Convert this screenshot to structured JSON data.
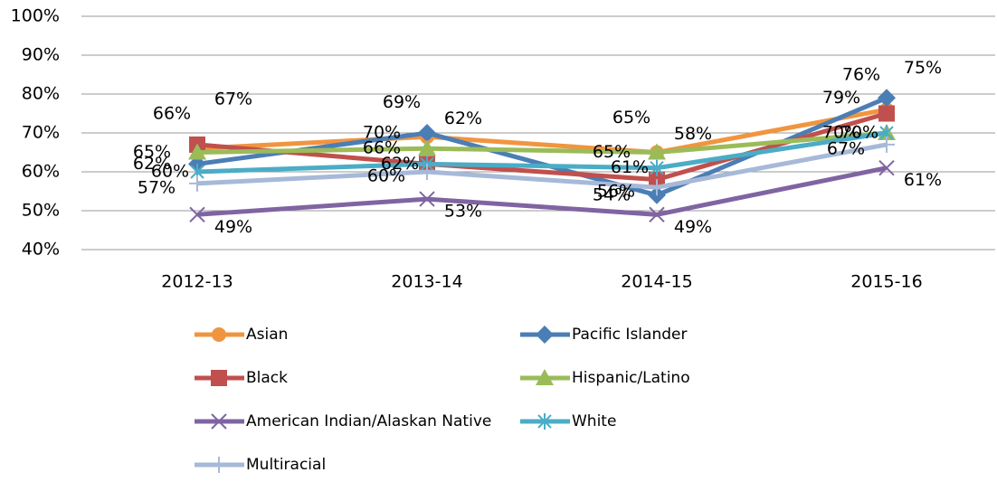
{
  "chart_data": {
    "type": "line",
    "categories": [
      "2012-13",
      "2013-14",
      "2014-15",
      "2015-16"
    ],
    "ylim": [
      40,
      100
    ],
    "yticks": [
      {
        "value": 40,
        "label": "40%"
      },
      {
        "value": 50,
        "label": "50%"
      },
      {
        "value": 60,
        "label": "60%"
      },
      {
        "value": 70,
        "label": "70%"
      },
      {
        "value": 80,
        "label": "80%"
      },
      {
        "value": 90,
        "label": "90%"
      },
      {
        "value": 100,
        "label": "100%"
      }
    ],
    "grid": true,
    "series": [
      {
        "name": "Asian",
        "color": "#f0953f",
        "marker": "circle",
        "values": [
          66,
          69,
          65,
          76
        ],
        "value_labels": [
          "66%",
          "69%",
          "65%",
          "76%"
        ]
      },
      {
        "name": "Pacific Islander",
        "color": "#4a7eb5",
        "marker": "diamond",
        "values": [
          62,
          70,
          54,
          79
        ],
        "value_labels": [
          "62%",
          "70%",
          "54%",
          "79%"
        ]
      },
      {
        "name": "Black",
        "color": "#c0504d",
        "marker": "square",
        "values": [
          67,
          62,
          58,
          75
        ],
        "value_labels": [
          "67%",
          "62%",
          "58%",
          "75%"
        ]
      },
      {
        "name": "Hispanic/Latino",
        "color": "#9bbb59",
        "marker": "triangle",
        "values": [
          65,
          66,
          65,
          70
        ],
        "value_labels": [
          "65%",
          "66%",
          "65%",
          "70%"
        ]
      },
      {
        "name": "American Indian/Alaskan Native",
        "color": "#8064a2",
        "marker": "x",
        "values": [
          49,
          53,
          49,
          61
        ],
        "value_labels": [
          "49%",
          "53%",
          "49%",
          "61%"
        ]
      },
      {
        "name": "White",
        "color": "#4bacc6",
        "marker": "star",
        "values": [
          60,
          62,
          61,
          70
        ],
        "value_labels": [
          "60%",
          "62%",
          "61%",
          "70%"
        ]
      },
      {
        "name": "Multiracial",
        "color": "#a7b9d8",
        "marker": "plus",
        "values": [
          57,
          60,
          56,
          67
        ],
        "value_labels": [
          "57%",
          "60%",
          "56%",
          "67%"
        ]
      }
    ]
  }
}
